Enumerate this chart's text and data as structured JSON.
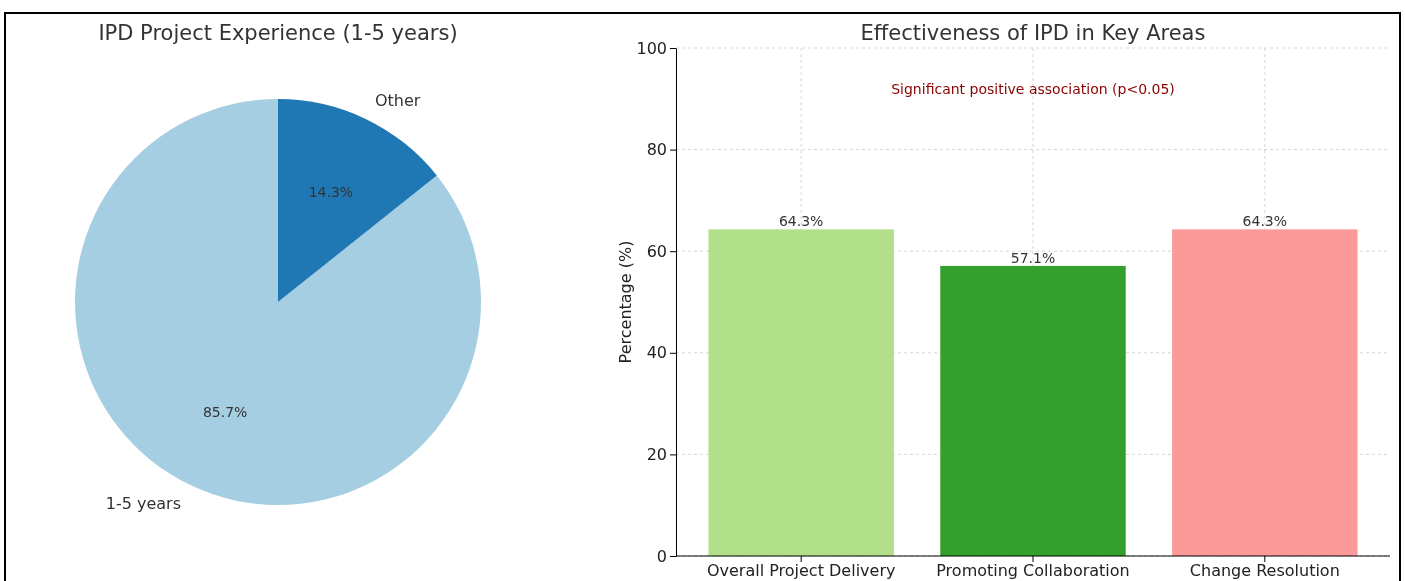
{
  "chart_data": [
    {
      "type": "pie",
      "title": "IPD Project Experience (1-5 years)",
      "categories": [
        "1-5 years",
        "Other"
      ],
      "values": [
        85.7,
        14.3
      ],
      "colors": [
        "#a6cee3",
        "#1f78b4"
      ],
      "value_labels": [
        "85.7%",
        "14.3%"
      ]
    },
    {
      "type": "bar",
      "title": "Effectiveness of IPD in Key Areas",
      "ylabel": "Percentage (%)",
      "categories": [
        "Overall Project Delivery",
        "Promoting Collaboration",
        "Change Resolution"
      ],
      "values": [
        64.3,
        57.1,
        64.3
      ],
      "colors": [
        "#b2df8a",
        "#33a02c",
        "#fb9a99"
      ],
      "ylim": [
        0,
        100
      ],
      "yticks": [
        0,
        20,
        40,
        60,
        80,
        100
      ],
      "grid": true,
      "value_labels": [
        "64.3%",
        "57.1%",
        "64.3%"
      ],
      "annotations": [
        "Significant positive association (p<0.05)"
      ]
    }
  ]
}
